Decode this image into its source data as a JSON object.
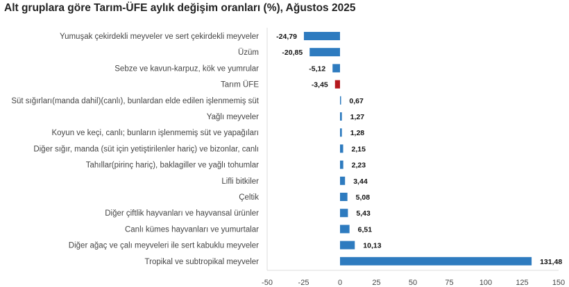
{
  "chart_data": {
    "type": "bar",
    "orientation": "horizontal",
    "title": "Alt gruplara göre Tarım-ÜFE aylık değişim oranları (%), Ağustos 2025",
    "categories": [
      "Yumuşak çekirdekli meyveler ve sert çekirdekli meyveler",
      "Üzüm",
      "Sebze ve kavun-karpuz, kök ve yumrular",
      "Tarım ÜFE",
      "Süt sığırları(manda dahil)(canlı), bunlardan elde edilen işlenmemiş süt",
      "Yağlı meyveler",
      "Koyun ve keçi, canlı; bunların işlenmemiş süt ve yapağıları",
      "Diğer sığır, manda (süt için yetiştirilenler hariç) ve bizonlar, canlı",
      "Tahıllar(pirinç hariç), baklagiller ve yağlı tohumlar",
      "Lifli bitkiler",
      "Çeltik",
      "Diğer çiftlik hayvanları ve hayvansal ürünler",
      "Canlı kümes hayvanları ve yumurtalar",
      "Diğer ağaç ve çalı meyveleri ile sert kabuklu meyveler",
      "Tropikal ve subtropikal meyveler"
    ],
    "values": [
      -24.79,
      -20.85,
      -5.12,
      -3.45,
      0.67,
      1.27,
      1.28,
      2.15,
      2.23,
      3.44,
      5.08,
      5.43,
      6.51,
      10.13,
      131.48
    ],
    "value_labels": [
      "-24,79",
      "-20,85",
      "-5,12",
      "-3,45",
      "0,67",
      "1,27",
      "1,28",
      "2,15",
      "2,23",
      "3,44",
      "5,08",
      "5,43",
      "6,51",
      "10,13",
      "131,48"
    ],
    "highlight_category": "Tarım ÜFE",
    "xlim": [
      -50,
      150
    ],
    "xticks": [
      "-50",
      "-25",
      "0",
      "25",
      "50",
      "75",
      "100",
      "125",
      "150"
    ],
    "grid": false,
    "colors": {
      "bar": "#2e7bbf",
      "highlight": "#b5181d"
    }
  }
}
